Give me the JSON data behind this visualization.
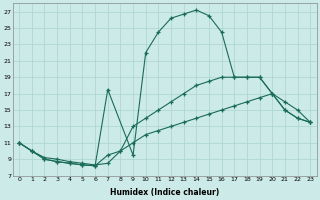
{
  "xlabel": "Humidex (Indice chaleur)",
  "ylabel": "",
  "bg_color": "#cceae8",
  "line_color": "#1a6b5a",
  "grid_color": "#aad4d0",
  "xlim": [
    -0.5,
    23.5
  ],
  "ylim": [
    7,
    28
  ],
  "xticks": [
    0,
    1,
    2,
    3,
    4,
    5,
    6,
    7,
    8,
    9,
    10,
    11,
    12,
    13,
    14,
    15,
    16,
    17,
    18,
    19,
    20,
    21,
    22,
    23
  ],
  "yticks": [
    7,
    9,
    11,
    13,
    15,
    17,
    19,
    21,
    23,
    25,
    27
  ],
  "line_top_x": [
    0,
    1,
    2,
    3,
    4,
    5,
    6,
    7,
    9,
    10,
    11,
    12,
    13,
    14,
    15,
    16,
    17,
    18,
    19,
    20,
    21,
    22,
    23
  ],
  "line_top_y": [
    11,
    10,
    9,
    8.7,
    8.5,
    8.3,
    8.2,
    17.5,
    9.5,
    22,
    24.5,
    26.2,
    26.7,
    27.2,
    26.5,
    24.5,
    19.0,
    19.0,
    19.0,
    17.0,
    15.0,
    14.0,
    13.5
  ],
  "line_mid_x": [
    0,
    1,
    2,
    3,
    4,
    5,
    6,
    7,
    8,
    9,
    10,
    11,
    12,
    13,
    14,
    15,
    16,
    17,
    18,
    19,
    20,
    21,
    22,
    23
  ],
  "line_mid_y": [
    11,
    10,
    9,
    8.7,
    8.5,
    8.3,
    8.2,
    9.5,
    10,
    13,
    14,
    15,
    16,
    17,
    18,
    18.5,
    19,
    19,
    19,
    19,
    17,
    15,
    14,
    13.5
  ],
  "line_bot_x": [
    0,
    1,
    2,
    3,
    4,
    5,
    6,
    7,
    8,
    9,
    10,
    11,
    12,
    13,
    14,
    15,
    16,
    17,
    18,
    19,
    20,
    21,
    22,
    23
  ],
  "line_bot_y": [
    11,
    10,
    9.2,
    9,
    8.7,
    8.5,
    8.3,
    8.5,
    10,
    11,
    12,
    12.5,
    13,
    13.5,
    14,
    14.5,
    15,
    15.5,
    16,
    16.5,
    17,
    16,
    15,
    13.5
  ]
}
